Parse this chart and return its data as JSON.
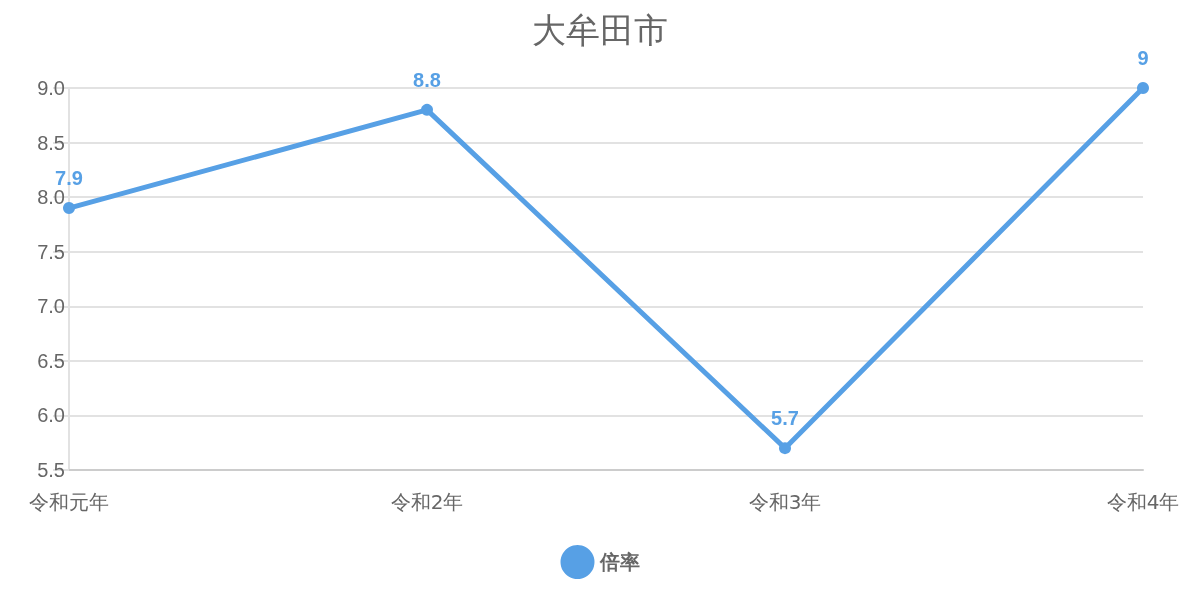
{
  "chart_data": {
    "type": "line",
    "title": "大牟田市",
    "categories": [
      "令和元年",
      "令和2年",
      "令和3年",
      "令和4年"
    ],
    "series": [
      {
        "name": "倍率",
        "color": "#57a0e5",
        "values": [
          7.9,
          8.8,
          5.7,
          9
        ]
      }
    ],
    "ylim": [
      5.5,
      9.0
    ],
    "yticks": [
      5.5,
      {
        "value": 6,
        "label": "6.0"
      },
      6.5,
      {
        "value": 7,
        "label": "7.0"
      },
      7.5,
      {
        "value": 8,
        "label": "8.0"
      },
      8.5,
      {
        "value": 9,
        "label": "9.0"
      }
    ],
    "grid": "y",
    "legend": "bottom",
    "marker": "circle",
    "line_style": "solid",
    "data_labels": true
  }
}
